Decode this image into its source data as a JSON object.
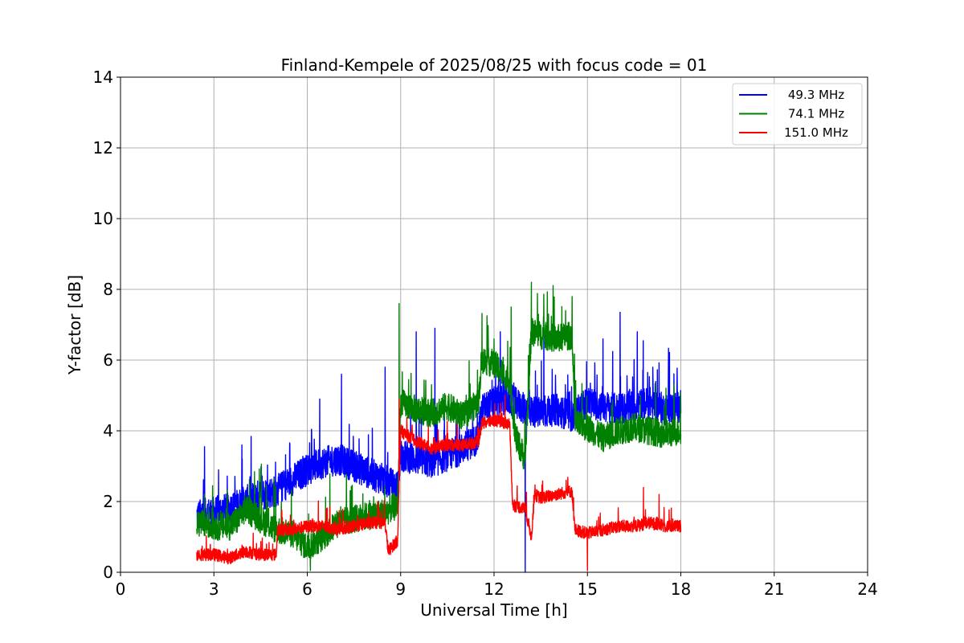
{
  "chart_data": {
    "type": "line",
    "title": "Finland-Kempele of 2025/08/25 with focus code = 01",
    "xlabel": "Universal Time [h]",
    "ylabel": "Y-factor [dB]",
    "xlim": [
      0,
      24
    ],
    "ylim": [
      0,
      14
    ],
    "xticks": [
      0,
      3,
      6,
      9,
      12,
      15,
      18,
      21,
      24
    ],
    "yticks": [
      0,
      2,
      4,
      6,
      8,
      10,
      12,
      14
    ],
    "xtick_labels": [
      "0",
      "3",
      "6",
      "9",
      "12",
      "15",
      "18",
      "21",
      "24"
    ],
    "ytick_labels": [
      "0",
      "2",
      "4",
      "6",
      "8",
      "10",
      "12",
      "14"
    ],
    "grid": true,
    "legend_position": "top-right",
    "series": [
      {
        "name": "49.3 MHz",
        "color": "#0000ff",
        "profile": [
          [
            2.45,
            1.6
          ],
          [
            3.0,
            1.7
          ],
          [
            3.5,
            1.8
          ],
          [
            4.0,
            2.0
          ],
          [
            4.5,
            2.2
          ],
          [
            5.0,
            2.3
          ],
          [
            5.5,
            2.6
          ],
          [
            6.0,
            2.9
          ],
          [
            6.5,
            3.1
          ],
          [
            7.0,
            3.2
          ],
          [
            7.5,
            3.0
          ],
          [
            8.0,
            2.8
          ],
          [
            8.5,
            2.6
          ],
          [
            8.9,
            2.4
          ],
          [
            9.0,
            3.3
          ],
          [
            9.5,
            3.2
          ],
          [
            10.0,
            3.1
          ],
          [
            10.5,
            3.3
          ],
          [
            11.0,
            3.5
          ],
          [
            11.5,
            3.8
          ],
          [
            11.6,
            4.6
          ],
          [
            12.0,
            4.8
          ],
          [
            12.5,
            4.9
          ],
          [
            13.0,
            4.6
          ],
          [
            13.5,
            4.5
          ],
          [
            14.0,
            4.6
          ],
          [
            14.5,
            4.4
          ],
          [
            15.0,
            4.8
          ],
          [
            15.5,
            4.7
          ],
          [
            16.0,
            4.6
          ],
          [
            16.5,
            4.7
          ],
          [
            17.0,
            4.8
          ],
          [
            17.5,
            4.6
          ],
          [
            18.0,
            4.7
          ]
        ],
        "noise": 0.9,
        "spikes": [
          [
            2.7,
            3.55
          ],
          [
            3.9,
            3.6
          ],
          [
            6.4,
            4.9
          ],
          [
            7.1,
            5.6
          ],
          [
            8.5,
            5.8
          ],
          [
            9.5,
            6.8
          ],
          [
            10.1,
            6.9
          ],
          [
            12.2,
            6.8
          ],
          [
            13.6,
            6.9
          ],
          [
            15.5,
            6.6
          ],
          [
            16.05,
            7.35
          ],
          [
            16.6,
            6.8
          ],
          [
            17.1,
            5.8
          ],
          [
            13.0,
            0.0
          ]
        ]
      },
      {
        "name": "74.1 MHz",
        "color": "#008000",
        "profile": [
          [
            2.45,
            1.4
          ],
          [
            3.0,
            1.3
          ],
          [
            3.5,
            1.3
          ],
          [
            3.8,
            1.5
          ],
          [
            4.0,
            1.8
          ],
          [
            4.5,
            1.5
          ],
          [
            5.0,
            1.2
          ],
          [
            5.5,
            1.1
          ],
          [
            6.0,
            0.7
          ],
          [
            6.5,
            1.0
          ],
          [
            7.0,
            1.4
          ],
          [
            7.5,
            1.5
          ],
          [
            8.0,
            1.6
          ],
          [
            8.5,
            1.7
          ],
          [
            8.9,
            1.9
          ],
          [
            9.0,
            4.8
          ],
          [
            9.5,
            4.6
          ],
          [
            10.0,
            4.5
          ],
          [
            10.5,
            4.7
          ],
          [
            11.0,
            4.4
          ],
          [
            11.5,
            4.8
          ],
          [
            11.6,
            6.0
          ],
          [
            12.0,
            5.9
          ],
          [
            12.5,
            5.4
          ],
          [
            12.7,
            3.8
          ],
          [
            13.0,
            3.2
          ],
          [
            13.2,
            6.8
          ],
          [
            13.5,
            6.7
          ],
          [
            14.0,
            6.6
          ],
          [
            14.5,
            6.7
          ],
          [
            14.6,
            4.2
          ],
          [
            15.0,
            4.1
          ],
          [
            15.5,
            3.8
          ],
          [
            16.0,
            4.0
          ],
          [
            16.5,
            4.1
          ],
          [
            17.0,
            4.0
          ],
          [
            17.5,
            3.9
          ],
          [
            18.0,
            4.0
          ]
        ],
        "noise": 0.8,
        "spikes": [
          [
            8.95,
            7.6
          ],
          [
            12.55,
            7.5
          ],
          [
            13.2,
            8.2
          ],
          [
            13.75,
            7.3
          ],
          [
            14.3,
            7.4
          ],
          [
            6.1,
            0.05
          ],
          [
            12.0,
            6.6
          ]
        ]
      },
      {
        "name": "151.0 MHz",
        "color": "#ff0000",
        "profile": [
          [
            2.45,
            0.5
          ],
          [
            3.0,
            0.5
          ],
          [
            3.5,
            0.4
          ],
          [
            4.0,
            0.6
          ],
          [
            4.5,
            0.5
          ],
          [
            5.0,
            0.5
          ],
          [
            5.05,
            1.2
          ],
          [
            5.5,
            1.2
          ],
          [
            6.0,
            1.3
          ],
          [
            6.5,
            1.3
          ],
          [
            7.0,
            1.2
          ],
          [
            7.5,
            1.3
          ],
          [
            8.0,
            1.4
          ],
          [
            8.5,
            1.4
          ],
          [
            8.6,
            0.6
          ],
          [
            8.9,
            0.9
          ],
          [
            9.0,
            4.0
          ],
          [
            9.5,
            3.7
          ],
          [
            10.0,
            3.5
          ],
          [
            10.5,
            3.6
          ],
          [
            11.0,
            3.6
          ],
          [
            11.5,
            3.7
          ],
          [
            11.6,
            4.2
          ],
          [
            12.0,
            4.3
          ],
          [
            12.5,
            4.2
          ],
          [
            12.6,
            1.9
          ],
          [
            13.0,
            1.8
          ],
          [
            13.2,
            1.0
          ],
          [
            13.3,
            2.2
          ],
          [
            13.5,
            2.1
          ],
          [
            14.0,
            2.2
          ],
          [
            14.5,
            2.3
          ],
          [
            14.6,
            1.2
          ],
          [
            15.0,
            1.1
          ],
          [
            15.5,
            1.2
          ],
          [
            16.0,
            1.3
          ],
          [
            16.5,
            1.3
          ],
          [
            17.0,
            1.4
          ],
          [
            17.5,
            1.3
          ],
          [
            18.0,
            1.3
          ]
        ],
        "noise": 0.35,
        "spikes": [
          [
            8.95,
            4.9
          ],
          [
            12.35,
            5.0
          ],
          [
            15.0,
            0.05
          ],
          [
            16.8,
            2.4
          ],
          [
            17.3,
            2.2
          ]
        ]
      }
    ]
  }
}
